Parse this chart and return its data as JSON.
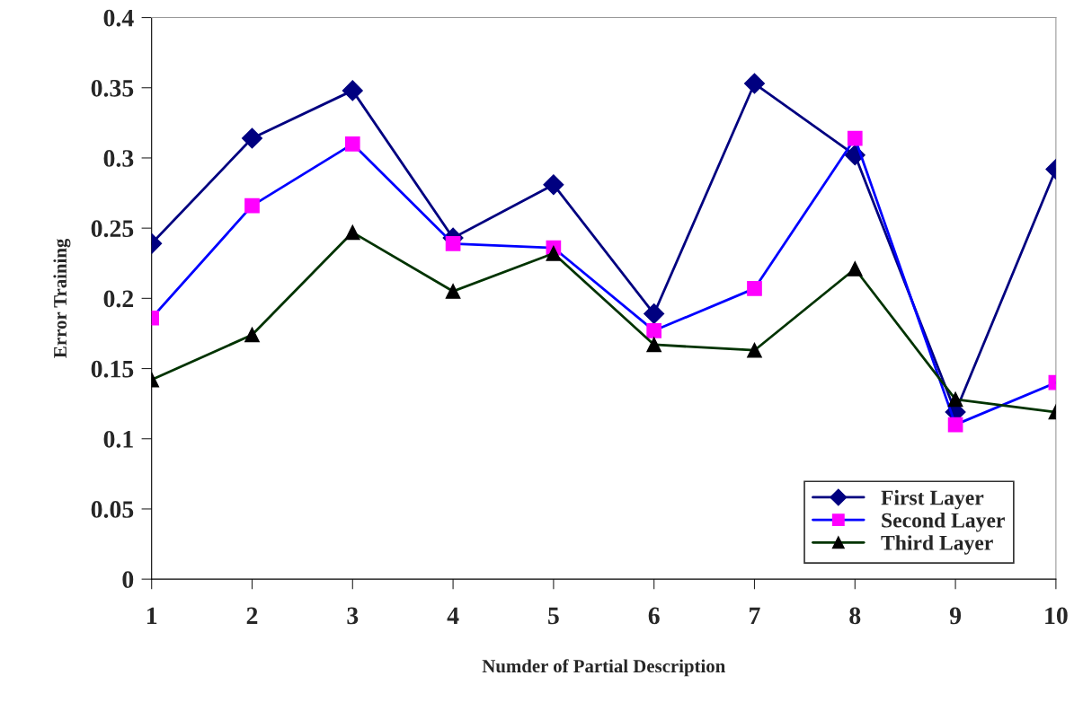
{
  "chart_data": {
    "type": "line",
    "xlabel": "Numder of Partial Description",
    "ylabel": "Error Training",
    "categories": [
      "1",
      "2",
      "3",
      "4",
      "5",
      "6",
      "7",
      "8",
      "9",
      "10"
    ],
    "ylim": [
      0,
      0.4
    ],
    "yticks": [
      0,
      0.05,
      0.1,
      0.15,
      0.2,
      0.25,
      0.3,
      0.35,
      0.4
    ],
    "grid": false,
    "legend": "bottom right",
    "series": [
      {
        "name": "First Layer",
        "color": "#000080",
        "marker": "diamond",
        "colors": [
          "#000080",
          "#000080",
          "#000080",
          "#000080",
          "#000080",
          "#000080",
          "#000080",
          "#000080",
          "#000080",
          "#000080"
        ],
        "values": [
          0.239,
          0.314,
          0.348,
          0.243,
          0.281,
          0.189,
          0.353,
          0.302,
          0.119,
          0.292
        ]
      },
      {
        "name": "Second Layer",
        "color": "#0000ff",
        "marker": "square",
        "colors": [
          "#ff00ff",
          "#ff00ff",
          "#ff00ff",
          "#ff00ff",
          "#ff00ff",
          "#ff00ff",
          "#ff00ff",
          "#ff00ff",
          "#ff00ff",
          "#ff00ff"
        ],
        "values": [
          0.186,
          0.266,
          0.31,
          0.239,
          0.236,
          0.177,
          0.207,
          0.314,
          0.11,
          0.14
        ]
      },
      {
        "name": "Third Layer",
        "color": "#003300",
        "marker": "triangle",
        "colors": [
          "#000000",
          "#000000",
          "#000000",
          "#000000",
          "#000000",
          "#000000",
          "#000000",
          "#000000",
          "#000000",
          "#000000"
        ],
        "values": [
          0.142,
          0.174,
          0.247,
          0.205,
          0.232,
          0.167,
          0.163,
          0.221,
          0.128,
          0.119
        ]
      }
    ]
  }
}
